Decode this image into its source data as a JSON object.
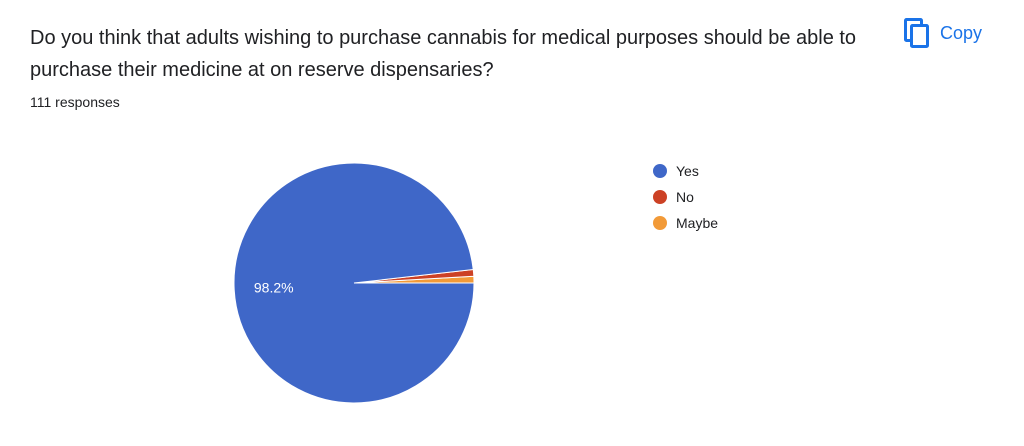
{
  "question": {
    "title": "Do you think that adults wishing to purchase cannabis for medical purposes should be able to purchase their medicine at on reserve dispensaries?",
    "responses_text": "111 responses"
  },
  "toolbar": {
    "copy_label": "Copy",
    "copy_icon": "copy-icon",
    "accent_color": "#1a73e8"
  },
  "chart_data": {
    "type": "pie",
    "categories": [
      "Yes",
      "No",
      "Maybe"
    ],
    "values": [
      98.2,
      0.9,
      0.9
    ],
    "colors": [
      "#3f67c8",
      "#cc4125",
      "#f29a38"
    ],
    "data_labels": [
      "98.2%",
      "",
      ""
    ],
    "legend_position": "right",
    "start": "3 o'clock",
    "direction": "counterclockwise-first-small-slices"
  }
}
